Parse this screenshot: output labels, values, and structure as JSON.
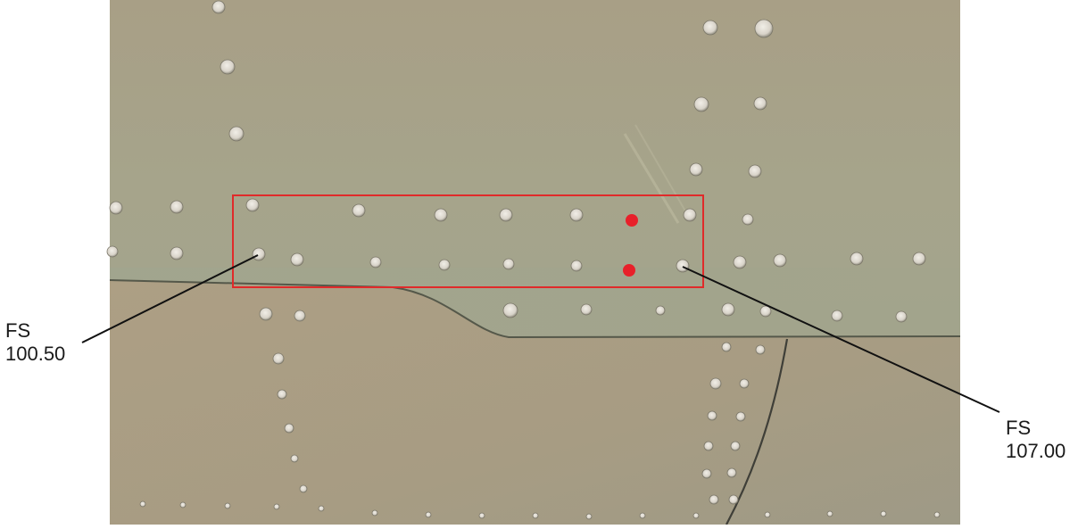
{
  "labels": {
    "left": {
      "line1": "FS",
      "line2": "100.50"
    },
    "right": {
      "line1": "FS",
      "line2": "107.00"
    }
  },
  "colors": {
    "skin_upper": "#a3a58c",
    "skin_panel": "#a0a58d",
    "skin_lower": "#a89d84",
    "highlight_box": "#e02a2a",
    "marker": "#e8202a",
    "leader_line": "#111111",
    "fastener": "#d9d5cc"
  },
  "markers": {
    "count": 2
  }
}
